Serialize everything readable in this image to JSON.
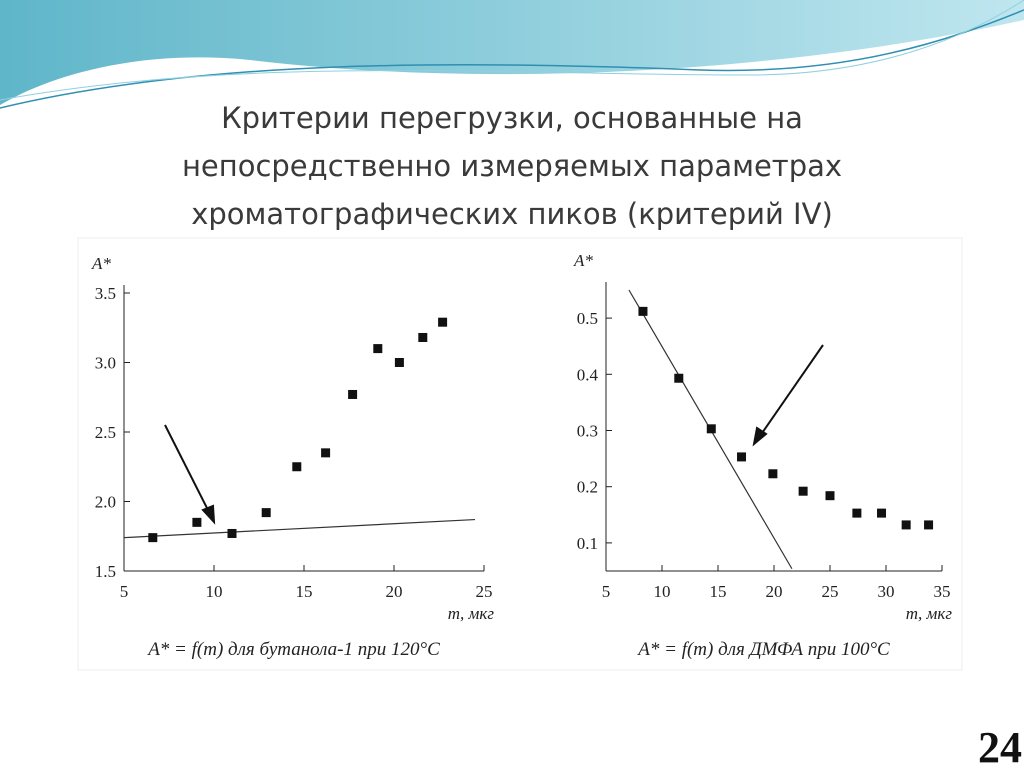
{
  "title": [
    "Критерии перегрузки, основанные на",
    "непосредственно измеряемых параметрах",
    "хроматографических пиков (критерий IV)"
  ],
  "page_number": "24",
  "chart_data": [
    {
      "type": "scatter",
      "y_label": "A*",
      "x_label": "m, мкг",
      "caption": "A* = f(m) для бутанола-1 при 120°C",
      "x": [
        6.6,
        9.05,
        11.0,
        12.9,
        14.6,
        16.2,
        17.7,
        19.1,
        20.3,
        21.6,
        22.7
      ],
      "values": [
        1.74,
        1.85,
        1.77,
        1.92,
        2.25,
        2.35,
        2.77,
        3.1,
        3.0,
        3.18,
        3.29
      ],
      "color": "#111111",
      "line": {
        "x": [
          5,
          24.5
        ],
        "y": [
          1.74,
          1.87
        ],
        "color": "#333333"
      },
      "xlim": [
        5,
        25
      ],
      "ylim": [
        1.5,
        3.5
      ],
      "xticks": [
        5,
        10,
        15,
        20,
        25
      ],
      "yticks": [
        1.5,
        {
          "value": 2,
          "label": "2.0"
        },
        2.5,
        {
          "value": 3,
          "label": "3.0"
        },
        3.5
      ]
    },
    {
      "type": "scatter",
      "y_label": "A*",
      "x_label": "m, мкг",
      "caption": "A* = f(m) для ДМФА при 100°C",
      "x": [
        8.3,
        11.5,
        14.4,
        17.1,
        19.9,
        22.6,
        25.0,
        27.4,
        29.6,
        31.8,
        33.8
      ],
      "values": [
        0.512,
        0.393,
        0.303,
        0.253,
        0.223,
        0.192,
        0.184,
        0.153,
        0.153,
        0.132,
        0.132
      ],
      "color": "#111111",
      "line": {
        "x": [
          7.05,
          21.6
        ],
        "y": [
          0.55,
          0.054
        ],
        "color": "#333333"
      },
      "xlim": [
        5,
        35
      ],
      "ylim": [
        0.05,
        0.55
      ],
      "xticks": [
        5,
        10,
        15,
        20,
        25,
        30,
        35
      ],
      "yticks": [
        0.1,
        0.2,
        0.3,
        0.4,
        0.5
      ]
    }
  ]
}
